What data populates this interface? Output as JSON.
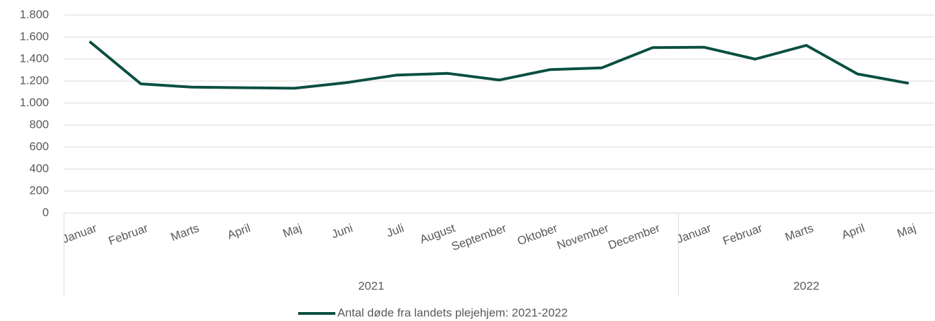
{
  "chart_data": {
    "type": "line",
    "groups": [
      {
        "name": "2021",
        "categories": [
          "Januar",
          "Februar",
          "Marts",
          "April",
          "Maj",
          "Juni",
          "Juli",
          "August",
          "September",
          "Oktober",
          "November",
          "December"
        ]
      },
      {
        "name": "2022",
        "categories": [
          "Januar",
          "Februar",
          "Marts",
          "April",
          "Maj"
        ]
      }
    ],
    "series": [
      {
        "name": "Antal døde fra landets plejehjem: 2021-2022",
        "color": "#0b4f42",
        "values": [
          1560,
          1175,
          1145,
          1140,
          1135,
          1185,
          1255,
          1270,
          1210,
          1305,
          1320,
          1505,
          1508,
          1400,
          1525,
          1265,
          1180
        ]
      }
    ],
    "ylim": [
      0,
      1800
    ],
    "yticks": [
      0,
      200,
      400,
      600,
      800,
      {
        "value": 1000,
        "label": "1.000"
      },
      {
        "value": 1200,
        "label": "1.200"
      },
      {
        "value": 1400,
        "label": "1.400"
      },
      {
        "value": 1600,
        "label": "1.600"
      },
      {
        "value": 1800,
        "label": "1.800"
      }
    ],
    "grid": true
  }
}
